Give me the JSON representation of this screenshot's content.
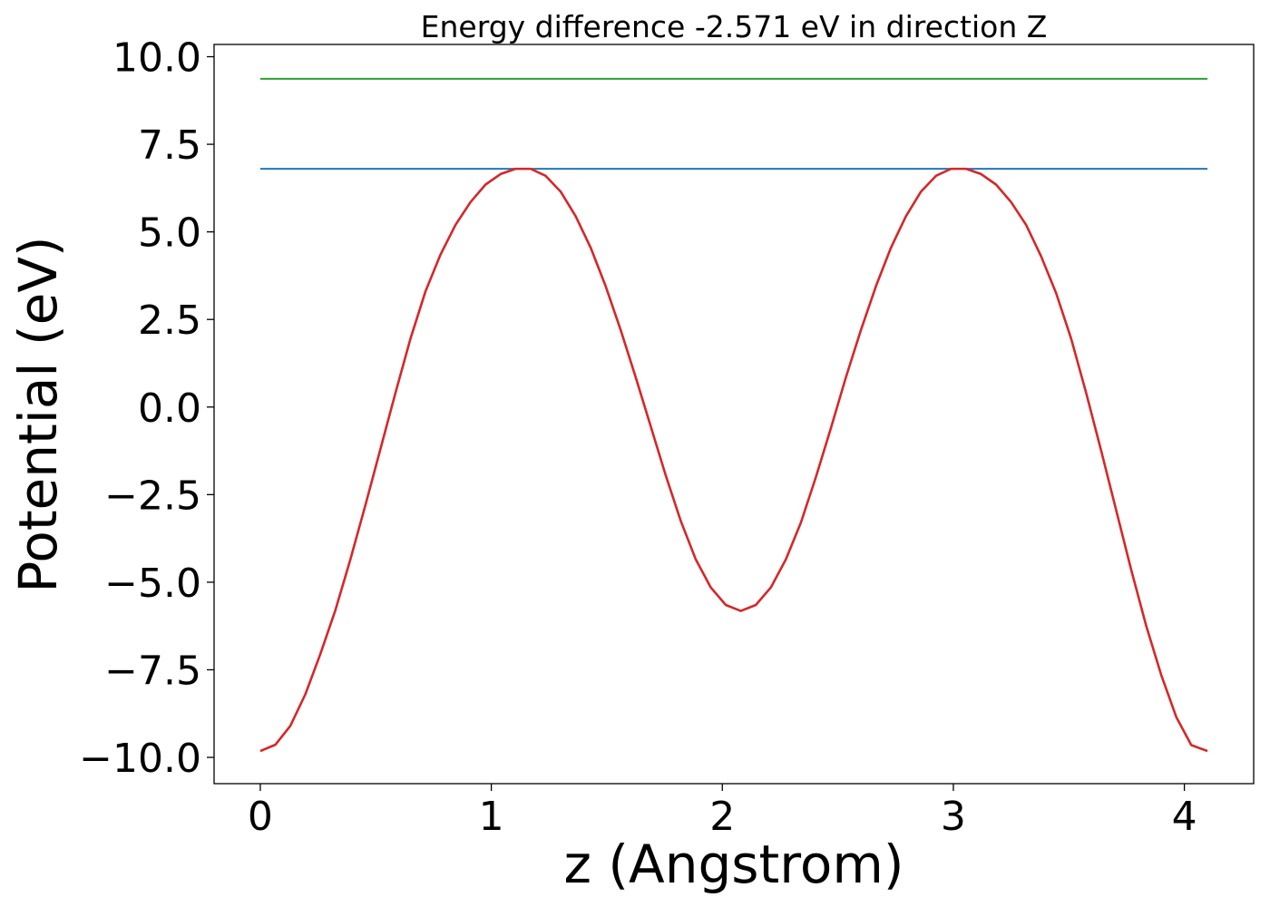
{
  "chart_data": {
    "type": "line",
    "title": "Energy difference -2.571 eV in direction Z",
    "xlabel": "z (Angstrom)",
    "ylabel": "Potential (eV)",
    "xlim": [
      -0.2,
      4.3
    ],
    "ylim": [
      -10.75,
      10.35
    ],
    "xticks": [
      0,
      1,
      2,
      3,
      4
    ],
    "xtick_labels": [
      "0",
      "1",
      "2",
      "3",
      "4"
    ],
    "yticks": [
      10.0,
      7.5,
      5.0,
      2.5,
      0.0,
      -2.5,
      -5.0,
      -7.5,
      -10.0
    ],
    "ytick_labels": [
      "10.0",
      "7.5",
      "5.0",
      "2.5",
      "0.0",
      "−2.5",
      "−5.0",
      "−7.5",
      "−10.0"
    ],
    "grid": false,
    "series": [
      {
        "color": "#2ca02c",
        "x": [
          0,
          4.1
        ],
        "y": [
          9.37,
          9.37
        ]
      },
      {
        "color": "#1f77b4",
        "x": [
          0,
          4.1
        ],
        "y": [
          6.8,
          6.8
        ]
      },
      {
        "color": "#d62728",
        "x": [
          0.0,
          0.065,
          0.13,
          0.195,
          0.26,
          0.325,
          0.39,
          0.455,
          0.52,
          0.585,
          0.65,
          0.715,
          0.78,
          0.845,
          0.91,
          0.975,
          1.04,
          1.105,
          1.17,
          1.235,
          1.3,
          1.365,
          1.43,
          1.495,
          1.56,
          1.625,
          1.69,
          1.755,
          1.82,
          1.885,
          1.95,
          2.015,
          2.08,
          2.145,
          2.21,
          2.275,
          2.34,
          2.405,
          2.47,
          2.535,
          2.6,
          2.665,
          2.73,
          2.795,
          2.86,
          2.925,
          2.99,
          3.055,
          3.12,
          3.185,
          3.25,
          3.315,
          3.38,
          3.445,
          3.51,
          3.575,
          3.64,
          3.705,
          3.77,
          3.835,
          3.9,
          3.965,
          4.03,
          4.1
        ],
        "y": [
          -9.82,
          -9.64,
          -9.1,
          -8.2,
          -7.05,
          -5.8,
          -4.35,
          -2.8,
          -1.2,
          0.4,
          1.95,
          3.3,
          4.35,
          5.2,
          5.85,
          6.35,
          6.65,
          6.8,
          6.8,
          6.6,
          6.15,
          5.45,
          4.55,
          3.45,
          2.2,
          0.85,
          -0.55,
          -1.95,
          -3.25,
          -4.35,
          -5.15,
          -5.65,
          -5.82,
          -5.65,
          -5.15,
          -4.35,
          -3.3,
          -2.0,
          -0.6,
          0.85,
          2.2,
          3.45,
          4.55,
          5.45,
          6.15,
          6.6,
          6.8,
          6.8,
          6.65,
          6.35,
          5.85,
          5.2,
          4.3,
          3.25,
          1.95,
          0.4,
          -1.25,
          -2.95,
          -4.65,
          -6.25,
          -7.65,
          -8.85,
          -9.65,
          -9.82
        ]
      }
    ]
  }
}
